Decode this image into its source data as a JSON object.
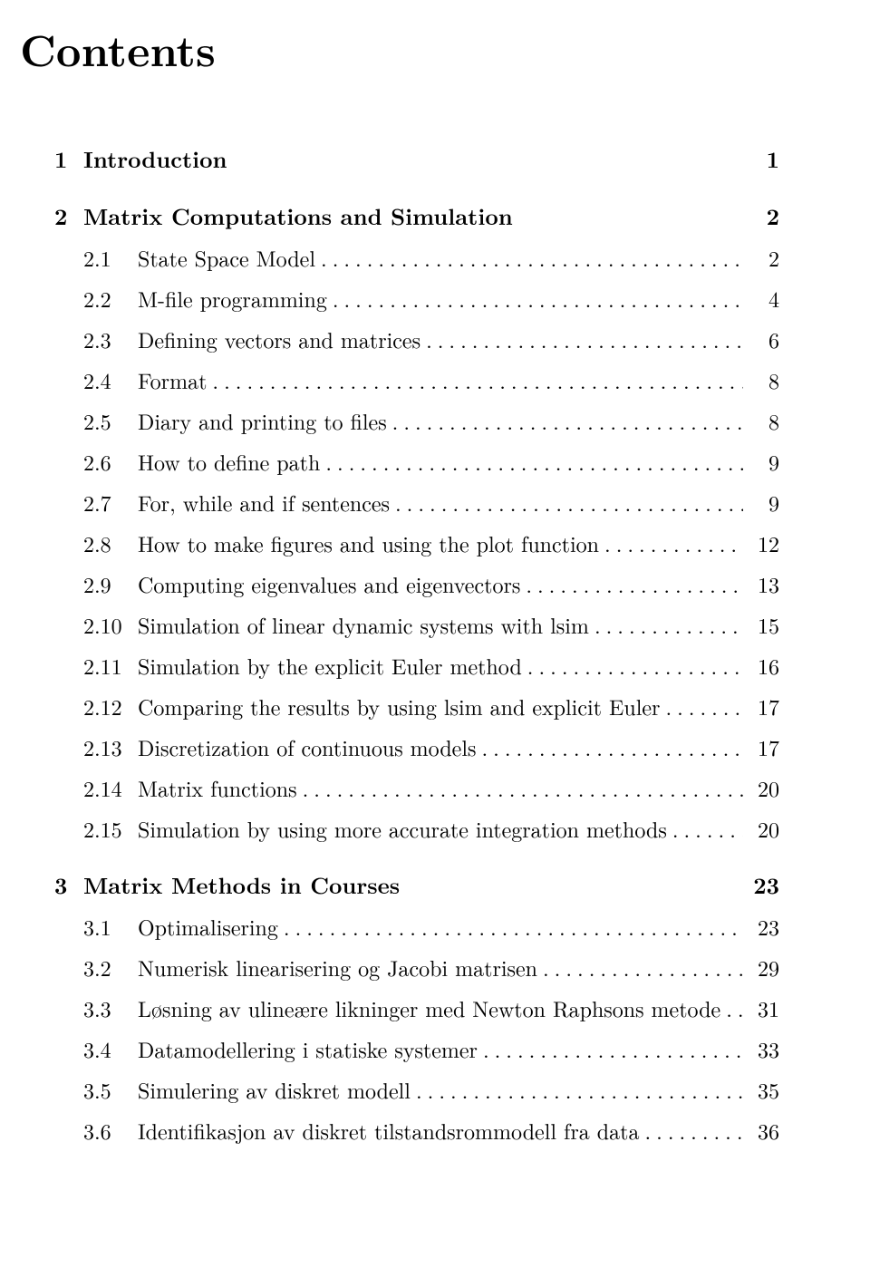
{
  "title": "Contents",
  "leader_char": ".",
  "chapters": [
    {
      "num": "1",
      "label": "Introduction",
      "page": "1",
      "sections": []
    },
    {
      "num": "2",
      "label": "Matrix Computations and Simulation",
      "page": "2",
      "sections": [
        {
          "num": "2.1",
          "label": "State Space Model",
          "page": "2"
        },
        {
          "num": "2.2",
          "label": "M-file programming",
          "page": "4"
        },
        {
          "num": "2.3",
          "label": "Defining vectors and matrices",
          "page": "6"
        },
        {
          "num": "2.4",
          "label": "Format",
          "page": "8"
        },
        {
          "num": "2.5",
          "label": "Diary and printing to files",
          "page": "8"
        },
        {
          "num": "2.6",
          "label": "How to define path",
          "page": "9"
        },
        {
          "num": "2.7",
          "label": "For, while and if sentences",
          "page": "9"
        },
        {
          "num": "2.8",
          "label": "How to make figures and using the plot function",
          "page": "12"
        },
        {
          "num": "2.9",
          "label": "Computing eigenvalues and eigenvectors",
          "page": "13"
        },
        {
          "num": "2.10",
          "label": "Simulation of linear dynamic systems with lsim",
          "page": "15"
        },
        {
          "num": "2.11",
          "label": "Simulation by the explicit Euler method",
          "page": "16"
        },
        {
          "num": "2.12",
          "label": "Comparing the results by using lsim and explicit Euler",
          "page": "17"
        },
        {
          "num": "2.13",
          "label": "Discretization of continuous models",
          "page": "17"
        },
        {
          "num": "2.14",
          "label": "Matrix functions",
          "page": "20"
        },
        {
          "num": "2.15",
          "label": "Simulation by using more accurate integration methods",
          "page": "20"
        }
      ]
    },
    {
      "num": "3",
      "label": "Matrix Methods in Courses",
      "page": "23",
      "sections": [
        {
          "num": "3.1",
          "label": "Optimalisering",
          "page": "23"
        },
        {
          "num": "3.2",
          "label": "Numerisk linearisering og Jacobi matrisen",
          "page": "29"
        },
        {
          "num": "3.3",
          "label": "Løsning av ulineære likninger med Newton Raphsons metode",
          "page": "31"
        },
        {
          "num": "3.4",
          "label": "Datamodellering i statiske systemer",
          "page": "33"
        },
        {
          "num": "3.5",
          "label": "Simulering av diskret modell",
          "page": "35"
        },
        {
          "num": "3.6",
          "label": "Identifikasjon av diskret tilstandsrommodell fra data",
          "page": "36"
        }
      ]
    }
  ]
}
